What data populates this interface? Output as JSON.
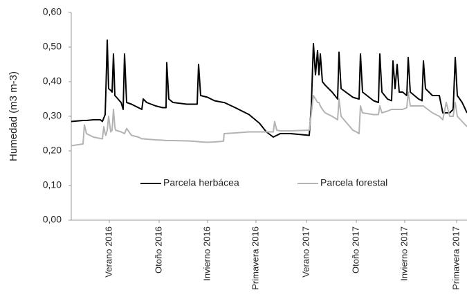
{
  "chart_data": {
    "type": "line",
    "y_label": "Humedad (m3 m-3)",
    "x": [
      0,
      17,
      19,
      22,
      32,
      42,
      45,
      47,
      49,
      50,
      52,
      54,
      57,
      59,
      61,
      63,
      64,
      72,
      75,
      77,
      80,
      87,
      97,
      102,
      104,
      109,
      122,
      132,
      137,
      138,
      141,
      147,
      167,
      177,
      182,
      184,
      187,
      197,
      207,
      220,
      221,
      237,
      257,
      272,
      282,
      292,
      294,
      297,
      302,
      317,
      344,
      347,
      350,
      353,
      356,
      358,
      360,
      363,
      367,
      377,
      385,
      387,
      390,
      407,
      412,
      416,
      418,
      421,
      437,
      444,
      446,
      449,
      457,
      463,
      465,
      468,
      471,
      474,
      479,
      485,
      487,
      490,
      502,
      507,
      509,
      512,
      522,
      532,
      537,
      542,
      547,
      552,
      555,
      558,
      565,
      572
    ],
    "series": [
      {
        "name": "Parcela herbácea",
        "color": "#000000",
        "values": [
          0.285,
          0.288,
          0.288,
          0.288,
          0.29,
          0.29,
          0.285,
          0.295,
          0.305,
          0.37,
          0.52,
          0.38,
          0.375,
          0.37,
          0.48,
          0.36,
          0.358,
          0.34,
          0.32,
          0.48,
          0.34,
          0.335,
          0.325,
          0.32,
          0.35,
          0.34,
          0.33,
          0.325,
          0.325,
          0.455,
          0.35,
          0.34,
          0.335,
          0.335,
          0.335,
          0.45,
          0.36,
          0.355,
          0.345,
          0.34,
          0.34,
          0.325,
          0.305,
          0.28,
          0.255,
          0.24,
          0.242,
          0.245,
          0.25,
          0.25,
          0.245,
          0.33,
          0.51,
          0.42,
          0.49,
          0.42,
          0.48,
          0.4,
          0.39,
          0.37,
          0.35,
          0.485,
          0.38,
          0.355,
          0.352,
          0.35,
          0.48,
          0.37,
          0.345,
          0.34,
          0.48,
          0.37,
          0.35,
          0.345,
          0.46,
          0.38,
          0.45,
          0.37,
          0.37,
          0.36,
          0.47,
          0.37,
          0.35,
          0.345,
          0.46,
          0.38,
          0.36,
          0.36,
          0.31,
          0.31,
          0.31,
          0.32,
          0.47,
          0.36,
          0.34,
          0.31
        ]
      },
      {
        "name": "Parcela forestal",
        "color": "#b3b3b3",
        "values": [
          0.215,
          0.22,
          0.275,
          0.25,
          0.24,
          0.236,
          0.235,
          0.27,
          0.25,
          0.245,
          0.26,
          0.3,
          0.255,
          0.26,
          0.32,
          0.27,
          0.26,
          0.255,
          0.252,
          0.25,
          0.265,
          0.245,
          0.24,
          0.235,
          0.235,
          0.234,
          0.232,
          0.231,
          0.23,
          0.23,
          0.23,
          0.23,
          0.229,
          0.228,
          0.227,
          0.227,
          0.226,
          0.225,
          0.226,
          0.228,
          0.25,
          0.252,
          0.255,
          0.255,
          0.255,
          0.255,
          0.285,
          0.26,
          0.258,
          0.258,
          0.26,
          0.31,
          0.36,
          0.35,
          0.34,
          0.34,
          0.33,
          0.32,
          0.31,
          0.3,
          0.29,
          0.35,
          0.3,
          0.26,
          0.255,
          0.25,
          0.33,
          0.31,
          0.305,
          0.305,
          0.33,
          0.31,
          0.315,
          0.32,
          0.32,
          0.32,
          0.32,
          0.32,
          0.32,
          0.325,
          0.37,
          0.33,
          0.33,
          0.33,
          0.33,
          0.325,
          0.31,
          0.3,
          0.29,
          0.34,
          0.3,
          0.3,
          0.34,
          0.3,
          0.285,
          0.27
        ]
      }
    ],
    "xlim": [
      0,
      572
    ],
    "xticks": [
      {
        "value": 55,
        "label": "Verano 2016"
      },
      {
        "value": 127,
        "label": "Otoño 2016"
      },
      {
        "value": 197,
        "label": "Invierno 2016"
      },
      {
        "value": 267,
        "label": "Primavera 2016"
      },
      {
        "value": 340,
        "label": "Verano 2017"
      },
      {
        "value": 412,
        "label": "Otoño 2017"
      },
      {
        "value": 482,
        "label": "Invierno 2017"
      },
      {
        "value": 557,
        "label": "Primavera 2017"
      }
    ],
    "ylim": [
      0,
      0.6
    ],
    "yticks": [
      {
        "value": 0,
        "label": "0,00"
      },
      {
        "value": 0.1,
        "label": "0,10"
      },
      {
        "value": 0.2,
        "label": "0,20"
      },
      {
        "value": 0.3,
        "label": "0,30"
      },
      {
        "value": 0.4,
        "label": "0,40"
      },
      {
        "value": 0.5,
        "label": "0,50"
      },
      {
        "value": 0.6,
        "label": "0,60"
      }
    ],
    "grid": false,
    "legend": "center"
  }
}
